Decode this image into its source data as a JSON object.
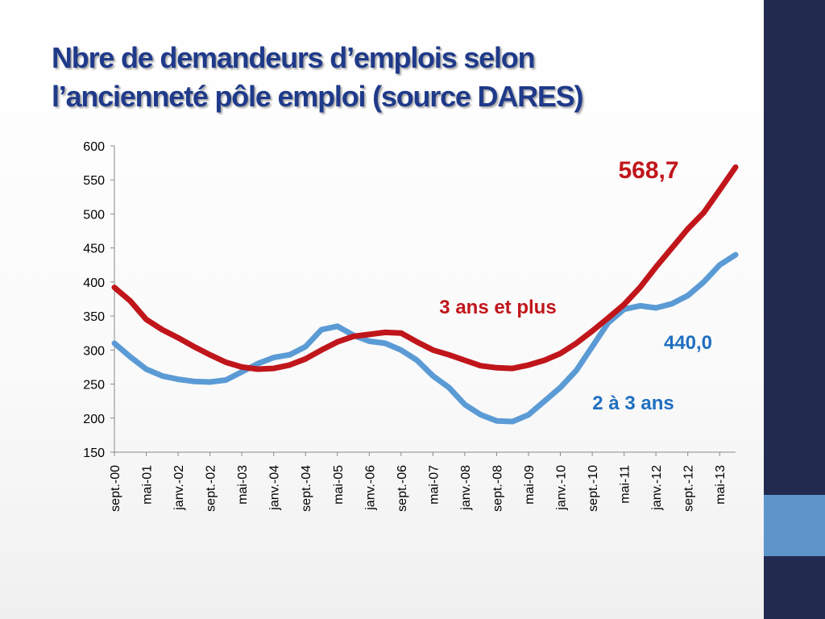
{
  "slide": {
    "title_line1": "Nbre de demandeurs d’emplois selon",
    "title_line2": "l’ancienneté pôle emploi (source DARES)"
  },
  "colors": {
    "title": "#1f3a8a",
    "sidebar": "#232a4f",
    "sidebar_accent": "#5d95cb",
    "series_3_ans": "#c0161b",
    "series_2_3_ans": "#5b9bd5",
    "label_2_3_ans": "#1f6fc0"
  },
  "chart_data": {
    "type": "line",
    "title": "",
    "xlabel": "",
    "ylabel": "",
    "ylim": [
      150,
      600
    ],
    "yticks": [
      150,
      200,
      250,
      300,
      350,
      400,
      450,
      500,
      550,
      600
    ],
    "grid": false,
    "legend": "none",
    "x_start": "sept.-00",
    "x_end": "sept.-13",
    "x_tick_labels": [
      "sept.-00",
      "mai-01",
      "janv.-02",
      "sept.-02",
      "mai-03",
      "janv.-04",
      "sept.-04",
      "mai-05",
      "janv.-06",
      "sept.-06",
      "mai-07",
      "janv.-08",
      "sept.-08",
      "mai-09",
      "janv.-10",
      "sept.-10",
      "mai-11",
      "janv.-12",
      "sept.-12",
      "mai-13"
    ],
    "x_tick_months": [
      0,
      8,
      16,
      24,
      32,
      40,
      48,
      56,
      64,
      72,
      80,
      88,
      96,
      104,
      112,
      120,
      128,
      136,
      144,
      152
    ],
    "series": [
      {
        "name": "3 ans et plus",
        "color": "#c0161b",
        "end_label": "568,7",
        "points": [
          [
            0,
            392
          ],
          [
            4,
            372
          ],
          [
            8,
            345
          ],
          [
            12,
            330
          ],
          [
            16,
            318
          ],
          [
            20,
            305
          ],
          [
            24,
            293
          ],
          [
            28,
            282
          ],
          [
            32,
            275
          ],
          [
            36,
            272
          ],
          [
            40,
            273
          ],
          [
            44,
            278
          ],
          [
            48,
            287
          ],
          [
            52,
            300
          ],
          [
            56,
            312
          ],
          [
            60,
            320
          ],
          [
            64,
            323
          ],
          [
            68,
            326
          ],
          [
            72,
            325
          ],
          [
            76,
            312
          ],
          [
            80,
            300
          ],
          [
            84,
            293
          ],
          [
            88,
            285
          ],
          [
            92,
            277
          ],
          [
            96,
            274
          ],
          [
            100,
            273
          ],
          [
            104,
            278
          ],
          [
            108,
            285
          ],
          [
            112,
            295
          ],
          [
            116,
            310
          ],
          [
            120,
            328
          ],
          [
            124,
            347
          ],
          [
            128,
            367
          ],
          [
            132,
            392
          ],
          [
            136,
            422
          ],
          [
            140,
            450
          ],
          [
            144,
            478
          ],
          [
            148,
            502
          ],
          [
            152,
            535
          ],
          [
            156,
            568.7
          ]
        ]
      },
      {
        "name": "2 à 3 ans",
        "color": "#5b9bd5",
        "end_label": "440,0",
        "points": [
          [
            0,
            310
          ],
          [
            4,
            290
          ],
          [
            8,
            272
          ],
          [
            12,
            262
          ],
          [
            16,
            257
          ],
          [
            20,
            254
          ],
          [
            24,
            253
          ],
          [
            28,
            256
          ],
          [
            32,
            268
          ],
          [
            36,
            280
          ],
          [
            40,
            289
          ],
          [
            44,
            293
          ],
          [
            48,
            305
          ],
          [
            52,
            330
          ],
          [
            56,
            335
          ],
          [
            60,
            322
          ],
          [
            64,
            313
          ],
          [
            68,
            310
          ],
          [
            72,
            300
          ],
          [
            76,
            285
          ],
          [
            80,
            262
          ],
          [
            84,
            245
          ],
          [
            88,
            220
          ],
          [
            92,
            205
          ],
          [
            96,
            196
          ],
          [
            100,
            195
          ],
          [
            104,
            205
          ],
          [
            108,
            225
          ],
          [
            112,
            245
          ],
          [
            116,
            270
          ],
          [
            120,
            305
          ],
          [
            124,
            340
          ],
          [
            128,
            360
          ],
          [
            132,
            365
          ],
          [
            136,
            362
          ],
          [
            140,
            368
          ],
          [
            144,
            380
          ],
          [
            148,
            400
          ],
          [
            152,
            425
          ],
          [
            156,
            440
          ]
        ]
      }
    ],
    "annotations": [
      {
        "text": "568,7",
        "color": "#c0161b"
      },
      {
        "text": "3 ans et plus",
        "color": "#c0161b"
      },
      {
        "text": "440,0",
        "color": "#1f6fc0"
      },
      {
        "text": "2 à 3 ans",
        "color": "#1f6fc0"
      }
    ]
  }
}
